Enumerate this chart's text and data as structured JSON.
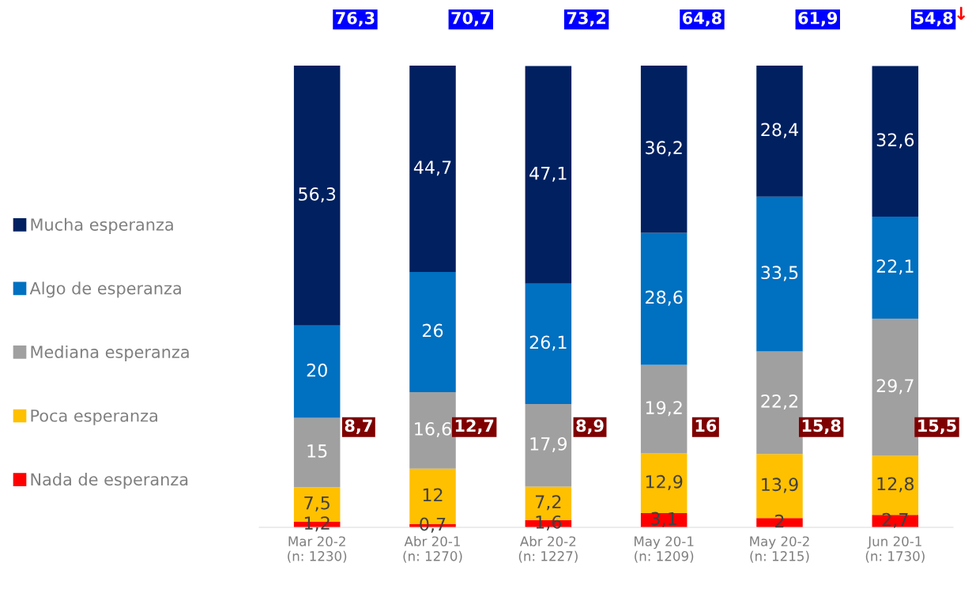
{
  "chart_data": {
    "type": "bar",
    "stacked": true,
    "legend": "left",
    "grid": false,
    "tick_labels": "x",
    "categories": [
      "Mar 20-2\n(n: 1230)",
      "Abr 20-1\n(n: 1270)",
      "Abr 20-2\n(n: 1227)",
      "May 20-1\n(n: 1209)",
      "May 20-2\n(n: 1215)",
      "Jun 20-1\n(n: 1730)"
    ],
    "series": [
      {
        "name": "Nada de esperanza",
        "color": "#ff0000",
        "values": [
          1.2,
          0.7,
          1.6,
          3.1,
          2,
          2.7
        ],
        "value_labels": [
          "1,2",
          "0,7",
          "1,6",
          "3,1",
          "2",
          "2,7"
        ]
      },
      {
        "name": "Poca esperanza",
        "color": "#ffc000",
        "values": [
          7.5,
          12,
          7.2,
          12.9,
          13.9,
          12.8
        ],
        "value_labels": [
          "7,5",
          "12",
          "7,2",
          "12,9",
          "13,9",
          "12,8"
        ]
      },
      {
        "name": "Mediana esperanza",
        "color": "#a0a0a0",
        "values": [
          15,
          16.6,
          17.9,
          19.2,
          22.2,
          29.7
        ],
        "value_labels": [
          "15",
          "16,6",
          "17,9",
          "19,2",
          "22,2",
          "29,7"
        ]
      },
      {
        "name": "Algo de esperanza",
        "color": "#0070c0",
        "values": [
          20,
          26,
          26.1,
          28.6,
          33.5,
          22.1
        ],
        "value_labels": [
          "20",
          "26",
          "26,1",
          "28,6",
          "33,5",
          "22,1"
        ]
      },
      {
        "name": "Mucha esperanza",
        "color": "#002060",
        "values": [
          56.3,
          44.7,
          47.1,
          36.2,
          28.4,
          32.6
        ],
        "value_labels": [
          "56,3",
          "44,7",
          "47,1",
          "36,2",
          "28,4",
          "32,6"
        ]
      }
    ],
    "annotations": [
      "76,3",
      "70,7",
      "73,2",
      "64,8",
      "61,9",
      "54,8",
      "8,7",
      "12,7",
      "8,9",
      "16",
      "15,8",
      "15,5",
      "↓"
    ]
  }
}
